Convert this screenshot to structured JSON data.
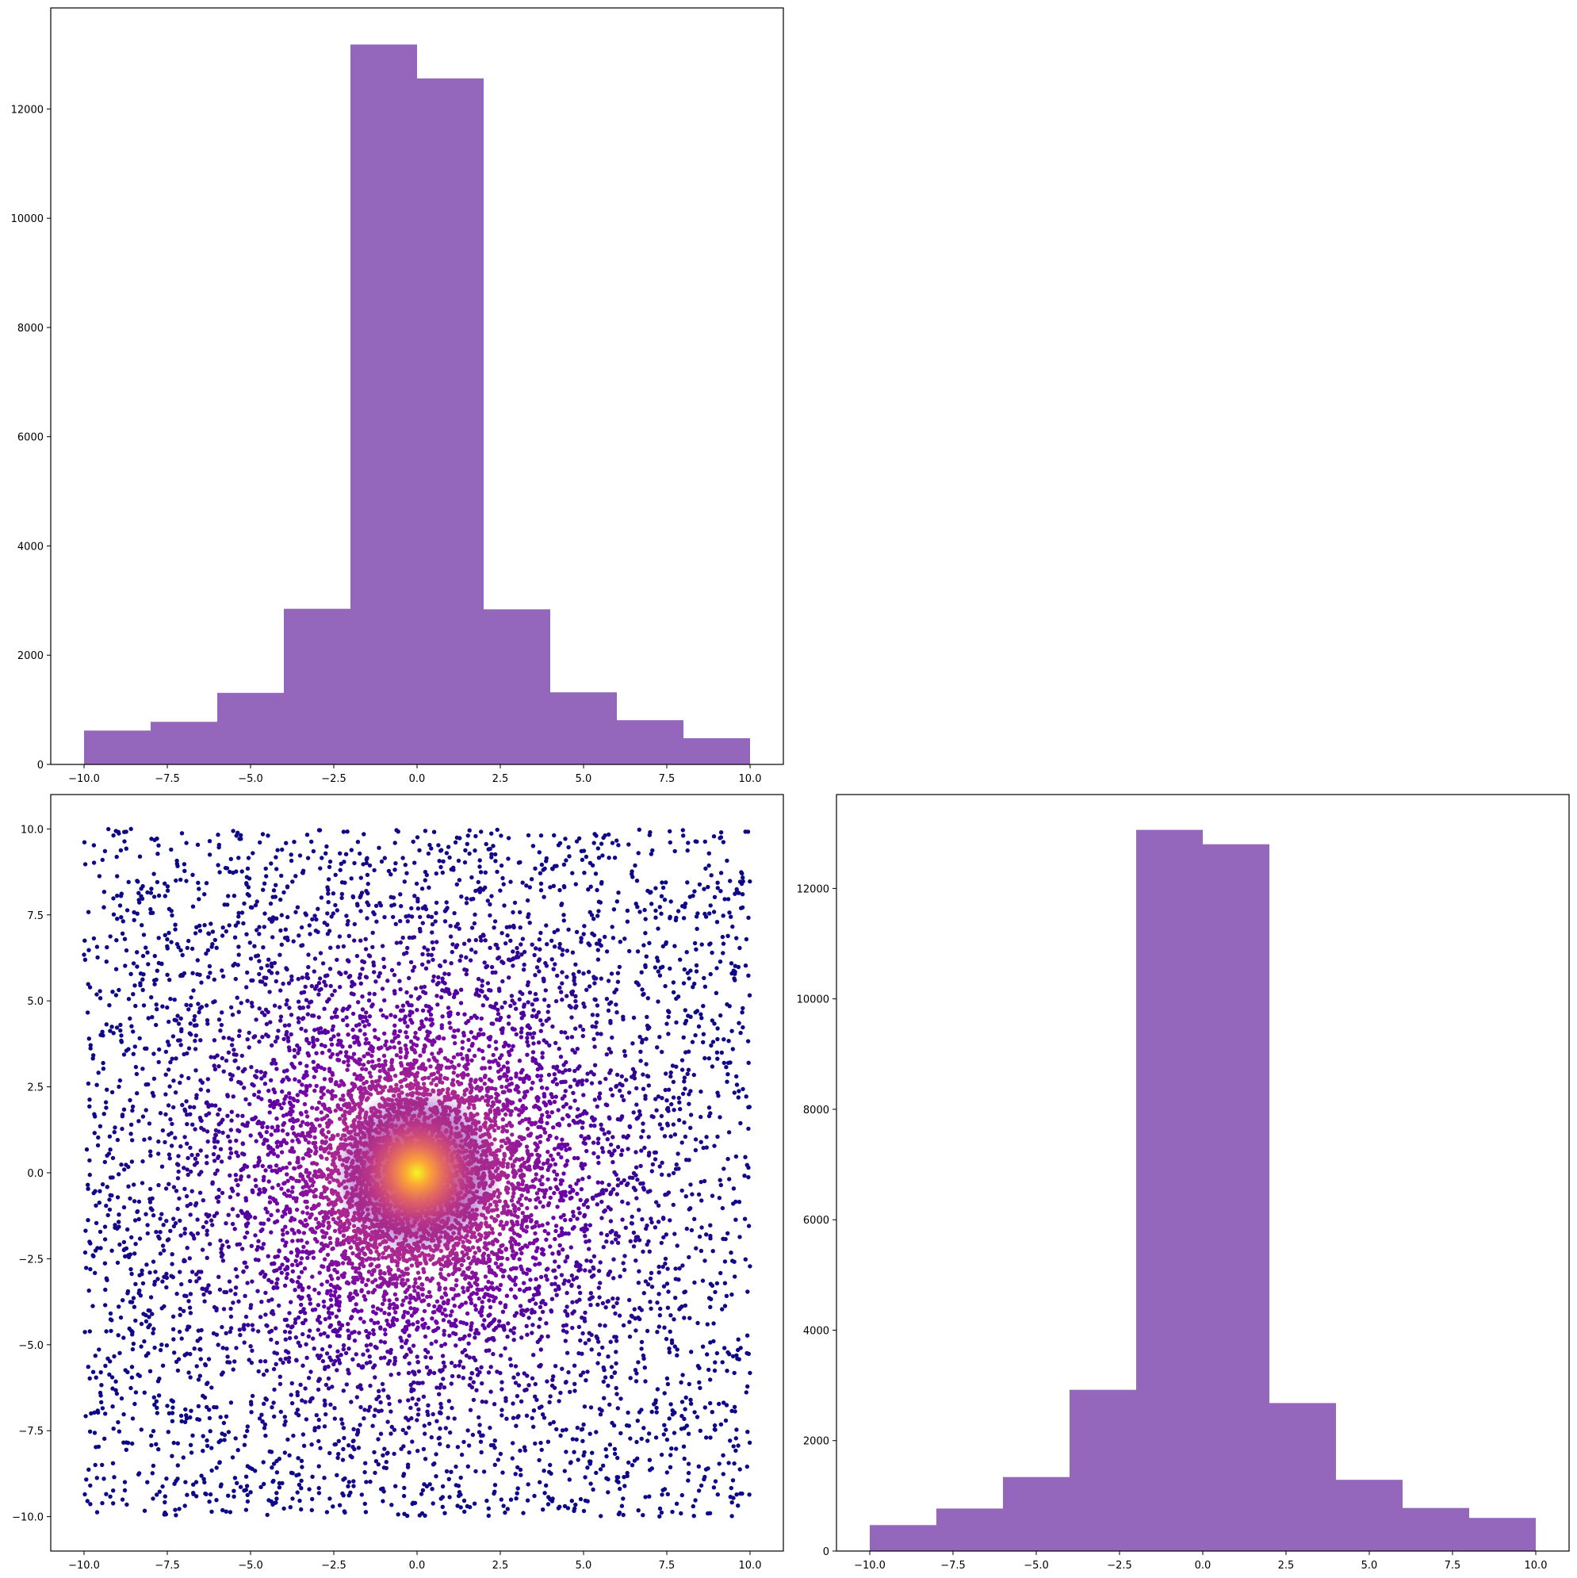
{
  "colors": {
    "hist_fill": "#9467bd",
    "axes": "#000000",
    "background": "#ffffff",
    "scatter_colormap": [
      "#0d0887",
      "#6a00a8",
      "#b12a90",
      "#e16462",
      "#fca636",
      "#f0f921"
    ]
  },
  "chart_data": [
    {
      "id": "hist-x",
      "type": "bar",
      "title": "",
      "xlabel": "",
      "ylabel": "",
      "bin_edges": [
        -10,
        -8,
        -6,
        -4,
        -2,
        0,
        2,
        4,
        6,
        8,
        10
      ],
      "values": [
        620,
        780,
        1310,
        2850,
        13180,
        12560,
        2840,
        1320,
        810,
        480
      ],
      "xlim": [
        -11,
        11
      ],
      "ylim": [
        0,
        13850
      ],
      "xticks": [
        -10,
        -7.5,
        -5,
        -2.5,
        0,
        2.5,
        5,
        7.5,
        10
      ],
      "xtick_labels": [
        "−10.0",
        "−7.5",
        "−5.0",
        "−2.5",
        "0.0",
        "2.5",
        "5.0",
        "7.5",
        "10.0"
      ],
      "yticks": [
        0,
        2000,
        4000,
        6000,
        8000,
        10000,
        12000
      ],
      "ytick_labels": [
        "0",
        "2000",
        "4000",
        "6000",
        "8000",
        "10000",
        "12000"
      ]
    },
    {
      "id": "scatter-xy",
      "type": "scatter",
      "title": "",
      "xlabel": "",
      "ylabel": "",
      "description_of_points": "approx. 10000 points uniformly spread over [-10,10] x [-10,10], denser toward the origin, colored by density (plasma colormap) peaking at (0,0)",
      "x_range": [
        -10,
        10
      ],
      "y_range": [
        -10,
        10
      ],
      "center": [
        0,
        0
      ],
      "xlim": [
        -11,
        11
      ],
      "ylim": [
        -11,
        11
      ],
      "xticks": [
        -10,
        -7.5,
        -5,
        -2.5,
        0,
        2.5,
        5,
        7.5,
        10
      ],
      "xtick_labels": [
        "−10.0",
        "−7.5",
        "−5.0",
        "−2.5",
        "0.0",
        "2.5",
        "5.0",
        "7.5",
        "10.0"
      ],
      "yticks": [
        -10,
        -7.5,
        -5,
        -2.5,
        0,
        2.5,
        5,
        7.5,
        10
      ],
      "ytick_labels": [
        "−10.0",
        "−7.5",
        "−5.0",
        "−2.5",
        "0.0",
        "2.5",
        "5.0",
        "7.5",
        "10.0"
      ]
    },
    {
      "id": "hist-y",
      "type": "bar",
      "title": "",
      "xlabel": "",
      "ylabel": "",
      "bin_edges": [
        -10,
        -8,
        -6,
        -4,
        -2,
        0,
        2,
        4,
        6,
        8,
        10
      ],
      "values": [
        470,
        770,
        1340,
        2920,
        13060,
        12800,
        2680,
        1290,
        780,
        600
      ],
      "xlim": [
        -11,
        11
      ],
      "ylim": [
        0,
        13700
      ],
      "xticks": [
        -10,
        -7.5,
        -5,
        -2.5,
        0,
        2.5,
        5,
        7.5,
        10
      ],
      "xtick_labels": [
        "−10.0",
        "−7.5",
        "−5.0",
        "−2.5",
        "0.0",
        "2.5",
        "5.0",
        "7.5",
        "10.0"
      ],
      "yticks": [
        0,
        2000,
        4000,
        6000,
        8000,
        10000,
        12000
      ],
      "ytick_labels": [
        "0",
        "2000",
        "4000",
        "6000",
        "8000",
        "10000",
        "12000"
      ]
    }
  ]
}
